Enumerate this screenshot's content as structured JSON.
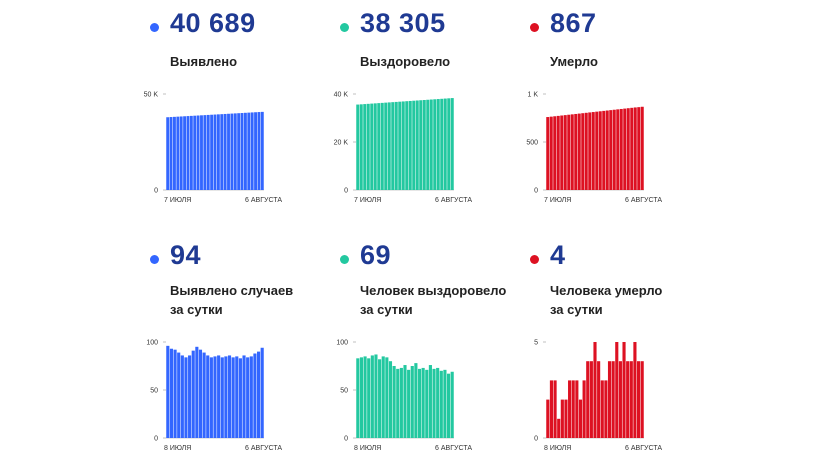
{
  "colors": {
    "blue": "#3366ff",
    "teal": "#23c8a0",
    "red": "#dd1122",
    "number": "#1f3a93"
  },
  "panels": [
    {
      "value": "40 689",
      "caption": [
        "Выявлено"
      ],
      "color": "#3366ff"
    },
    {
      "value": "38 305",
      "caption": [
        "Выздоровело"
      ],
      "color": "#23c8a0"
    },
    {
      "value": "867",
      "caption": [
        "Умерло"
      ],
      "color": "#dd1122"
    },
    {
      "value": "94",
      "caption": [
        "Выявлено случаев",
        "за сутки"
      ],
      "color": "#3366ff"
    },
    {
      "value": "69",
      "caption": [
        "Человек выздоровело",
        "за сутки"
      ],
      "color": "#23c8a0"
    },
    {
      "value": "4",
      "caption": [
        "Человека умерло",
        "за сутки"
      ],
      "color": "#dd1122"
    }
  ],
  "chart_data": [
    {
      "type": "bar",
      "x_start": "7 ИЮЛЯ",
      "x_end": "6 АВГУСТА",
      "y_ticks": [
        "50 K",
        "0"
      ],
      "ylim": [
        0,
        50000
      ],
      "values": [
        37900,
        38000,
        38100,
        38200,
        38300,
        38400,
        38500,
        38600,
        38700,
        38800,
        38900,
        39000,
        39100,
        39200,
        39300,
        39400,
        39500,
        39600,
        39700,
        39800,
        39900,
        40000,
        40100,
        40200,
        40300,
        40400,
        40500,
        40600,
        40689
      ]
    },
    {
      "type": "bar",
      "x_start": "7 ИЮЛЯ",
      "x_end": "6 АВГУСТА",
      "y_ticks": [
        "40 K",
        "20 K",
        "0"
      ],
      "ylim": [
        0,
        40000
      ],
      "values": [
        35600,
        35700,
        35800,
        35900,
        36000,
        36100,
        36200,
        36300,
        36400,
        36500,
        36600,
        36700,
        36800,
        36900,
        37000,
        37100,
        37200,
        37300,
        37400,
        37500,
        37600,
        37700,
        37800,
        37900,
        38000,
        38100,
        38200,
        38305
      ]
    },
    {
      "type": "bar",
      "x_start": "7 ИЮЛЯ",
      "x_end": "6 АВГУСТА",
      "y_ticks": [
        "1 K",
        "500",
        "0"
      ],
      "ylim": [
        0,
        1000
      ],
      "values": [
        760,
        764,
        768,
        772,
        776,
        780,
        784,
        788,
        792,
        796,
        800,
        804,
        808,
        812,
        816,
        820,
        824,
        828,
        832,
        836,
        840,
        844,
        848,
        852,
        856,
        860,
        863,
        867
      ]
    },
    {
      "type": "bar",
      "x_start": "8 ИЮЛЯ",
      "x_end": "6 АВГУСТА",
      "y_ticks": [
        "100",
        "50",
        "0"
      ],
      "ylim": [
        0,
        100
      ],
      "values": [
        96,
        93,
        92,
        89,
        86,
        84,
        86,
        91,
        95,
        92,
        89,
        86,
        84,
        85,
        86,
        84,
        85,
        86,
        84,
        85,
        83,
        86,
        84,
        85,
        88,
        90,
        94
      ]
    },
    {
      "type": "bar",
      "x_start": "8 ИЮЛЯ",
      "x_end": "6 АВГУСТА",
      "y_ticks": [
        "100",
        "50",
        "0"
      ],
      "ylim": [
        0,
        100
      ],
      "values": [
        83,
        84,
        85,
        83,
        86,
        87,
        82,
        85,
        84,
        80,
        75,
        72,
        73,
        76,
        71,
        75,
        78,
        72,
        73,
        71,
        76,
        72,
        73,
        70,
        71,
        67,
        69
      ]
    },
    {
      "type": "bar",
      "x_start": "8 ИЮЛЯ",
      "x_end": "6 АВГУСТА",
      "y_ticks": [
        "5",
        "0"
      ],
      "ylim": [
        0,
        5
      ],
      "values": [
        2,
        3,
        3,
        1,
        2,
        2,
        3,
        3,
        3,
        2,
        3,
        4,
        4,
        5,
        4,
        3,
        3,
        4,
        4,
        5,
        4,
        5,
        4,
        4,
        5,
        4,
        4
      ]
    }
  ]
}
